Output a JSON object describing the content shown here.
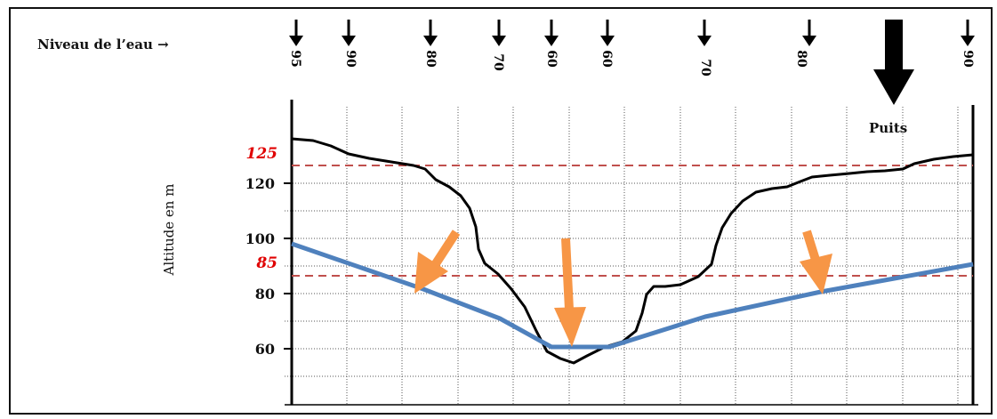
{
  "header": {
    "water_level_label": "Niveau de l’eau →",
    "water_level_values": [
      "95",
      "90",
      "80",
      "70",
      "60",
      "60",
      "70",
      "80",
      "90"
    ]
  },
  "chart": {
    "y_axis_label": "Altitude en m",
    "y_ticks": [
      "60",
      "80",
      "100",
      "120"
    ],
    "reference_labels": [
      "125",
      "85"
    ],
    "well_label": "Puits"
  },
  "colors": {
    "terrain": "#000000",
    "water_table": "#4f81bd",
    "arrows": "#f79646",
    "reference_lines": "#c0504d",
    "reference_labels": "#e00000",
    "grid": "#555555"
  },
  "icons": [
    "down-arrow-icon",
    "well-arrow-icon",
    "orange-arrow-icon"
  ]
}
